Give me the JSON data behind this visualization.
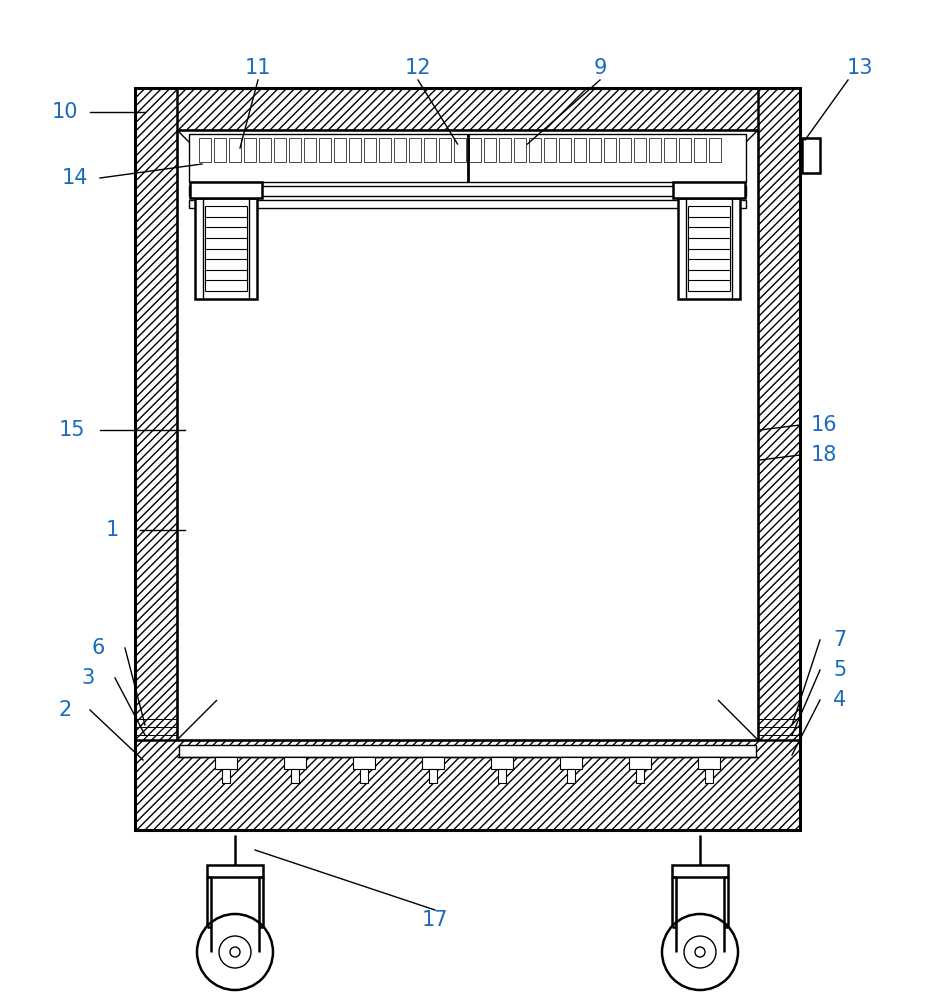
{
  "bg_color": "#ffffff",
  "line_color": "#000000",
  "label_color": "#1a6bbf",
  "figsize": [
    9.33,
    10.0
  ],
  "dpi": 100
}
